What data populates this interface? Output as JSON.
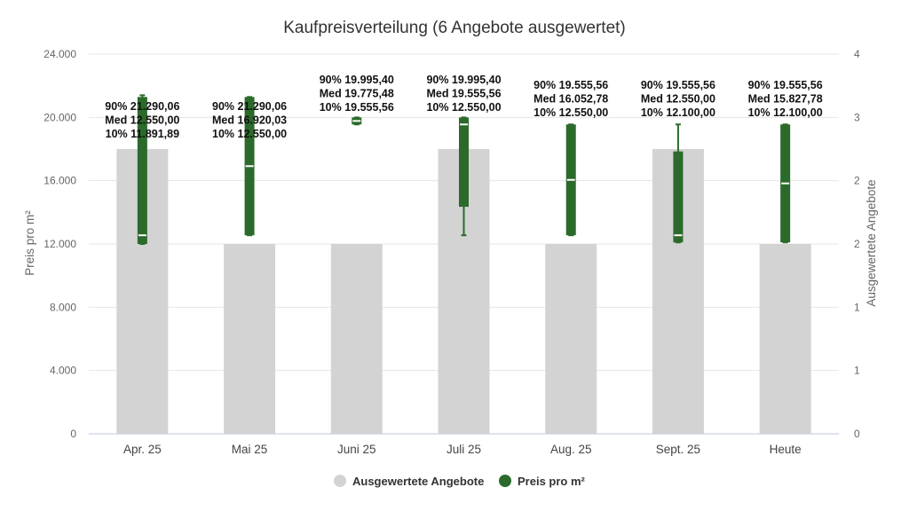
{
  "chart_data": {
    "type": "bar",
    "title": "Kaufpreisverteilung (6 Angebote ausgewertet)",
    "categories": [
      "Apr. 25",
      "Mai 25",
      "Juni 25",
      "Juli 25",
      "Aug. 25",
      "Sept. 25",
      "Heute"
    ],
    "y_left": {
      "label": "Preis pro m²",
      "ticks": [
        "0",
        "4.000",
        "8.000",
        "12.000",
        "16.000",
        "20.000",
        "24.000"
      ],
      "ylim": [
        0,
        24000
      ]
    },
    "y_right": {
      "label": "Ausgewertete Angebote",
      "ticks": [
        "0",
        "1",
        "1",
        "2",
        "2",
        "3",
        "4"
      ],
      "ylim": [
        0,
        4
      ]
    },
    "series": [
      {
        "name": "Ausgewertete Angebote",
        "type": "bar",
        "axis": "right",
        "color": "#d3d3d3",
        "values": [
          3,
          2,
          2,
          3,
          2,
          3,
          2
        ]
      },
      {
        "name": "Preis pro m²",
        "type": "boxplot",
        "axis": "left",
        "color": "#2b6a2b",
        "boxes": [
          {
            "low": 12000,
            "q1": 12000,
            "median": 12550.0,
            "q3": 21290.06,
            "high": 21400,
            "p10": 11891.89,
            "p90": 21290.06
          },
          {
            "low": 12550,
            "q1": 12550,
            "median": 16920.03,
            "q3": 21290.06,
            "high": 21290.06,
            "p10": 12550.0,
            "p90": 21290.06
          },
          {
            "low": 19555.56,
            "q1": 19555.56,
            "median": 19775.48,
            "q3": 19995.4,
            "high": 19995.4,
            "p10": 19555.56,
            "p90": 19995.4
          },
          {
            "low": 12550,
            "q1": 14350,
            "median": 19555.56,
            "q3": 19995.4,
            "high": 19995.4,
            "p10": 12550.0,
            "p90": 19995.4
          },
          {
            "low": 12550,
            "q1": 12550,
            "median": 16052.78,
            "q3": 19555.56,
            "high": 19555.56,
            "p10": 12550.0,
            "p90": 19555.56
          },
          {
            "low": 12100,
            "q1": 12100,
            "median": 12550.0,
            "q3": 17850,
            "high": 19555.56,
            "p10": 12100.0,
            "p90": 19555.56
          },
          {
            "low": 12100,
            "q1": 12100,
            "median": 15827.78,
            "q3": 19555.56,
            "high": 19555.56,
            "p10": 12100.0,
            "p90": 19555.56
          }
        ]
      }
    ],
    "annotations": [
      [
        "90% 21.290,06",
        "Med 12.550,00",
        "10% 11.891,89"
      ],
      [
        "90% 21.290,06",
        "Med 16.920,03",
        "10% 12.550,00"
      ],
      [
        "90% 19.995,40",
        "Med 19.775,48",
        "10% 19.555,56"
      ],
      [
        "90% 19.995,40",
        "Med 19.555,56",
        "10% 12.550,00"
      ],
      [
        "90% 19.555,56",
        "Med 16.052,78",
        "10% 12.550,00"
      ],
      [
        "90% 19.555,56",
        "Med 12.550,00",
        "10% 12.100,00"
      ],
      [
        "90% 19.555,56",
        "Med 15.827,78",
        "10% 12.100,00"
      ]
    ],
    "legend": {
      "position": "bottom",
      "items": [
        {
          "label": "Ausgewertete Angebote",
          "color": "#d3d3d3"
        },
        {
          "label": "Preis pro m²",
          "color": "#2b6a2b"
        }
      ]
    },
    "grid": true
  }
}
